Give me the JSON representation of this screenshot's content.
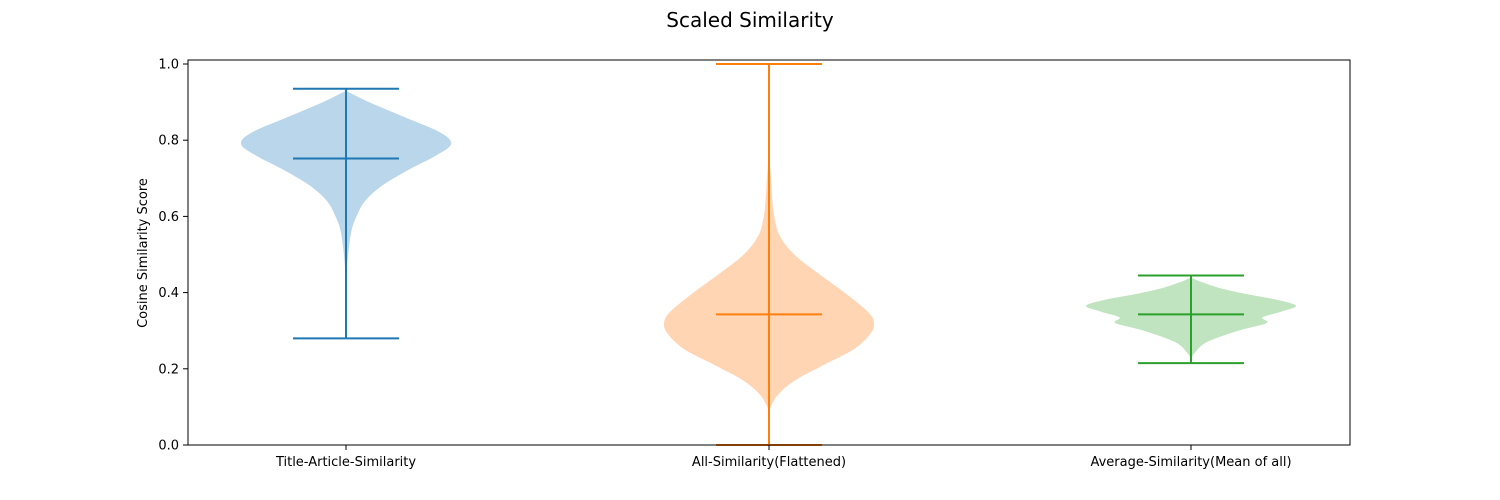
{
  "chart_data": {
    "type": "violin",
    "title": "Scaled Similarity",
    "xlabel": "",
    "ylabel": "Cosine Similarity Score",
    "ylim": [
      0.0,
      1.0
    ],
    "yticks": [
      "0.0",
      "0.2",
      "0.4",
      "0.6",
      "0.8",
      "1.0"
    ],
    "grid": false,
    "categories": [
      "Title-Article-Similarity",
      "All-Similarity(Flattened)",
      "Average-Similarity(Mean of all)"
    ],
    "series": [
      {
        "category": "Title-Article-Similarity",
        "color": "#1f77b4",
        "fill": "#bad6ea",
        "min": 0.28,
        "max": 0.935,
        "mean": 0.752,
        "density": [
          [
            0.43,
            0.0
          ],
          [
            0.5,
            0.02
          ],
          [
            0.56,
            0.05
          ],
          [
            0.6,
            0.1
          ],
          [
            0.64,
            0.18
          ],
          [
            0.68,
            0.34
          ],
          [
            0.72,
            0.58
          ],
          [
            0.76,
            0.86
          ],
          [
            0.79,
            1.0
          ],
          [
            0.82,
            0.9
          ],
          [
            0.86,
            0.56
          ],
          [
            0.9,
            0.22
          ],
          [
            0.93,
            0.0
          ]
        ]
      },
      {
        "category": "All-Similarity(Flattened)",
        "color": "#ff7f0e",
        "fill": "#ffd5b3",
        "min": 0.0,
        "max": 1.0,
        "mean": 0.343,
        "density": [
          [
            0.09,
            0.0
          ],
          [
            0.13,
            0.08
          ],
          [
            0.17,
            0.25
          ],
          [
            0.21,
            0.52
          ],
          [
            0.25,
            0.8
          ],
          [
            0.29,
            0.96
          ],
          [
            0.32,
            1.0
          ],
          [
            0.35,
            0.94
          ],
          [
            0.4,
            0.72
          ],
          [
            0.45,
            0.47
          ],
          [
            0.5,
            0.24
          ],
          [
            0.55,
            0.1
          ],
          [
            0.6,
            0.05
          ],
          [
            0.65,
            0.03
          ],
          [
            0.7,
            0.02
          ],
          [
            0.76,
            0.0
          ]
        ]
      },
      {
        "category": "Average-Similarity(Mean of all)",
        "color": "#2ca02c",
        "fill": "#c0e4bf",
        "min": 0.215,
        "max": 0.445,
        "mean": 0.343,
        "density": [
          [
            0.22,
            0.0
          ],
          [
            0.24,
            0.03
          ],
          [
            0.27,
            0.15
          ],
          [
            0.3,
            0.45
          ],
          [
            0.32,
            0.72
          ],
          [
            0.335,
            0.68
          ],
          [
            0.35,
            0.86
          ],
          [
            0.365,
            1.0
          ],
          [
            0.38,
            0.84
          ],
          [
            0.395,
            0.55
          ],
          [
            0.41,
            0.3
          ],
          [
            0.43,
            0.08
          ],
          [
            0.44,
            0.0
          ]
        ]
      }
    ]
  }
}
